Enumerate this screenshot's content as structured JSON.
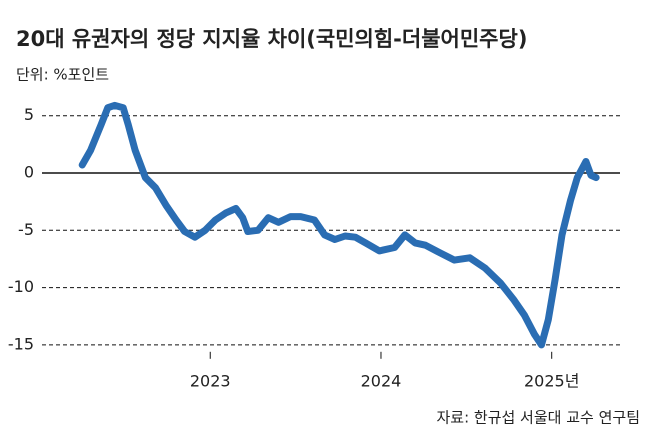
{
  "chart_data": {
    "type": "line",
    "title": "20대 유권자의 정당 지지율 차이(국민의힘-더불어민주당)",
    "subtitle": "단위: %포인트",
    "source": "자료: 한규섭 서울대 교수 연구팀",
    "color": "#2a6db3",
    "x": [
      2022.25,
      2022.3,
      2022.36,
      2022.4,
      2022.44,
      2022.49,
      2022.52,
      2022.56,
      2022.62,
      2022.68,
      2022.74,
      2022.8,
      2022.85,
      2022.91,
      2022.97,
      2023.03,
      2023.09,
      2023.15,
      2023.19,
      2023.22,
      2023.28,
      2023.34,
      2023.4,
      2023.47,
      2023.53,
      2023.61,
      2023.67,
      2023.73,
      2023.79,
      2023.85,
      2023.91,
      2023.99,
      2024.08,
      2024.14,
      2024.2,
      2024.26,
      2024.35,
      2024.43,
      2024.52,
      2024.61,
      2024.7,
      2024.78,
      2024.84,
      2024.9,
      2024.94,
      2024.98,
      2025.02,
      2025.06,
      2025.11,
      2025.15,
      2025.2,
      2025.23,
      2025.26
    ],
    "values": [
      0.7,
      2.0,
      4.2,
      5.7,
      5.9,
      5.7,
      4.2,
      2.0,
      -0.4,
      -1.3,
      -2.8,
      -4.1,
      -5.1,
      -5.6,
      -5.0,
      -4.1,
      -3.5,
      -3.1,
      -3.9,
      -5.1,
      -5.0,
      -3.9,
      -4.3,
      -3.8,
      -3.8,
      -4.1,
      -5.4,
      -5.8,
      -5.5,
      -5.6,
      -6.1,
      -6.8,
      -6.5,
      -5.4,
      -6.1,
      -6.3,
      -7.0,
      -7.6,
      -7.4,
      -8.3,
      -9.6,
      -11.1,
      -12.4,
      -14.1,
      -15.0,
      -12.8,
      -9.3,
      -5.4,
      -2.4,
      -0.4,
      1.0,
      -0.2,
      -0.4
    ],
    "xlim": [
      2022.12,
      2025.4
    ],
    "xticks": [
      2023,
      2024,
      {
        "value": 2025,
        "label": "2025년"
      }
    ],
    "ylim": [
      -15.6,
      6.5
    ],
    "yticks": [
      5,
      0,
      -5,
      -10,
      -15
    ],
    "grid": true
  }
}
